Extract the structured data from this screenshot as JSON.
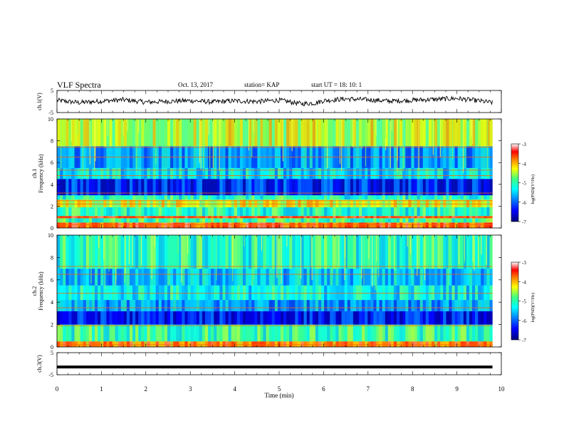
{
  "header": {
    "title": "VLF Spectra",
    "date": "Oct. 13, 2017",
    "station": "station= KAP",
    "start": "start  UT =   18: 10: 1"
  },
  "colors": {
    "background": "#ffffff",
    "axis": "#000000",
    "spectrogram_scale": [
      "#00007a",
      "#0000ff",
      "#0090ff",
      "#00ffff",
      "#40ff80",
      "#ffff00",
      "#ff8000",
      "#ff0000",
      "#ffffff"
    ]
  },
  "chart_data": [
    {
      "type": "line",
      "panel": "ch1-waveform",
      "ylabel": "ch.1(V)",
      "yticks": [
        "5",
        "-5"
      ],
      "ylim": [
        -5,
        5
      ],
      "xlim": [
        0,
        10
      ],
      "x": [
        0,
        0.5,
        1,
        1.5,
        2,
        2.5,
        3,
        3.5,
        4,
        4.5,
        5,
        5.5,
        5.8,
        6,
        6.5,
        7,
        7.5,
        8,
        8.5,
        9,
        9.5,
        9.8
      ],
      "values": [
        0.5,
        -0.5,
        0.2,
        0.8,
        -0.3,
        0.1,
        0.4,
        -0.2,
        0.3,
        0.0,
        0.6,
        -1.0,
        -0.7,
        0.4,
        1.2,
        0.8,
        0.2,
        0.6,
        1.0,
        1.4,
        0.3,
        -0.5
      ]
    },
    {
      "type": "heatmap",
      "panel": "ch1-spectrogram",
      "ylabel": "ch.1",
      "ylabel2": "Frequency (kHz)",
      "yticks": [
        "0",
        "2",
        "4",
        "6",
        "8",
        "10"
      ],
      "ylim": [
        0,
        10
      ],
      "xlim": [
        0,
        9.8
      ],
      "colorbar": {
        "label": "log(PSD)(V²/Hz)",
        "ticks": [
          "-3",
          "-4",
          "-5",
          "-6",
          "-7"
        ],
        "range": [
          -7,
          -3
        ]
      },
      "bands": [
        {
          "f": [
            0.0,
            0.5
          ],
          "level": -3.8
        },
        {
          "f": [
            0.5,
            0.9
          ],
          "level": -5.1
        },
        {
          "f": [
            0.9,
            1.1
          ],
          "level": -3.6
        },
        {
          "f": [
            1.1,
            1.9
          ],
          "level": -5.3
        },
        {
          "f": [
            1.9,
            2.6
          ],
          "level": -4.6
        },
        {
          "f": [
            2.6,
            3.0
          ],
          "level": -5.3
        },
        {
          "f": [
            3.0,
            4.5
          ],
          "level": -6.4
        },
        {
          "f": [
            4.5,
            5.5
          ],
          "level": -5.6
        },
        {
          "f": [
            5.5,
            7.5
          ],
          "level": -5.9
        },
        {
          "f": [
            7.5,
            10.0
          ],
          "level": -4.7
        }
      ],
      "tones_khz": [
        0.3,
        1.0,
        2.2,
        2.5,
        3.2,
        4.8,
        5.3,
        6.5,
        7.4
      ]
    },
    {
      "type": "heatmap",
      "panel": "ch2-spectrogram",
      "ylabel": "ch.2",
      "ylabel2": "Frequency (kHz)",
      "yticks": [
        "0",
        "2",
        "4",
        "6",
        "8",
        "10"
      ],
      "ylim": [
        0,
        10
      ],
      "xlim": [
        0,
        9.8
      ],
      "colorbar": {
        "label": "log(PSD)(V²/Hz)",
        "ticks": [
          "-3",
          "-4",
          "-5",
          "-6",
          "-7"
        ],
        "range": [
          -7,
          -3
        ]
      },
      "bands": [
        {
          "f": [
            0.0,
            0.5
          ],
          "level": -4.0
        },
        {
          "f": [
            0.5,
            2.0
          ],
          "level": -5.2
        },
        {
          "f": [
            2.0,
            3.2
          ],
          "level": -6.5
        },
        {
          "f": [
            3.2,
            4.2
          ],
          "level": -5.9
        },
        {
          "f": [
            4.2,
            5.5
          ],
          "level": -5.5
        },
        {
          "f": [
            5.5,
            7.0
          ],
          "level": -5.7
        },
        {
          "f": [
            7.0,
            10.0
          ],
          "level": -5.3
        }
      ],
      "tones_khz": [
        0.2,
        1.9,
        3.5,
        4.8,
        6.5,
        7.2
      ]
    },
    {
      "type": "line",
      "panel": "ch3-waveform",
      "ylabel": "ch.3(V)",
      "yticks": [
        "5",
        "-5"
      ],
      "ylim": [
        -5,
        5
      ],
      "xlim": [
        0,
        10
      ],
      "x": [
        0,
        9.8
      ],
      "values": [
        -1.5,
        -1.5
      ]
    }
  ],
  "xaxis": {
    "label": "Time (min)",
    "ticks": [
      "0",
      "1",
      "2",
      "3",
      "4",
      "5",
      "6",
      "7",
      "8",
      "9",
      "10"
    ],
    "range": [
      0,
      10
    ]
  }
}
